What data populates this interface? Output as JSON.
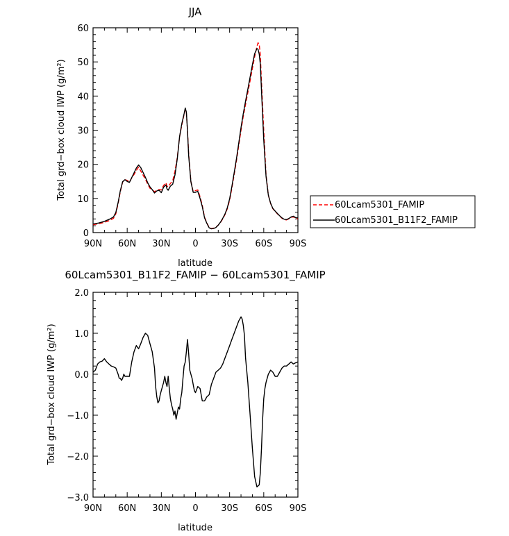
{
  "chart_data": [
    {
      "type": "line",
      "title": "JJA",
      "xlabel": "latitude",
      "ylabel": "Total grd−box cloud IWP (g/m²)",
      "xlim": [
        90,
        -90
      ],
      "ylim": [
        0,
        60
      ],
      "x_ticks": [
        90,
        60,
        30,
        0,
        -30,
        -60,
        -90
      ],
      "x_tick_labels": [
        "90N",
        "60N",
        "30N",
        "0",
        "30S",
        "60S",
        "90S"
      ],
      "y_ticks": [
        0,
        10,
        20,
        30,
        40,
        50,
        60
      ],
      "y_tick_labels": [
        "0",
        "10",
        "20",
        "30",
        "40",
        "50",
        "60"
      ],
      "legend_position": "right",
      "series": [
        {
          "name": "60Lcam5301_FAMIP",
          "color": "#ff0000",
          "dash": true,
          "x": [
            90,
            85,
            80,
            75,
            72,
            70,
            68,
            66,
            64,
            62,
            60,
            58,
            56,
            54,
            52,
            50,
            48,
            46,
            44,
            42,
            40,
            38,
            36,
            34,
            32,
            30,
            28,
            26,
            25,
            24,
            22,
            20,
            18,
            16,
            14,
            12,
            10,
            9,
            8,
            7,
            6,
            4,
            2,
            0,
            -2,
            -4,
            -6,
            -8,
            -10,
            -12,
            -14,
            -16,
            -18,
            -20,
            -22,
            -24,
            -26,
            -28,
            -30,
            -32,
            -34,
            -36,
            -38,
            -40,
            -42,
            -44,
            -46,
            -48,
            -50,
            -52,
            -54,
            -55,
            -56,
            -57,
            -58,
            -60,
            -62,
            -64,
            -66,
            -68,
            -70,
            -72,
            -74,
            -76,
            -78,
            -80,
            -82,
            -84,
            -86,
            -88,
            -90
          ],
          "y": [
            2.3,
            2.6,
            3.0,
            3.6,
            4.2,
            5.5,
            8.5,
            12.0,
            14.8,
            15.5,
            15.3,
            14.8,
            16.0,
            17.0,
            18.2,
            19.2,
            18.0,
            16.8,
            15.6,
            14.2,
            13.0,
            12.5,
            12.0,
            12.4,
            12.6,
            12.5,
            13.8,
            14.6,
            13.6,
            13.4,
            14.4,
            15.2,
            18.0,
            22.0,
            28.0,
            31.5,
            34.6,
            36.0,
            35.0,
            30.0,
            23.0,
            15.0,
            12.0,
            12.3,
            12.5,
            10.5,
            8.0,
            4.5,
            2.8,
            1.5,
            1.2,
            1.3,
            1.6,
            2.2,
            3.0,
            4.0,
            5.3,
            7.0,
            9.5,
            13.0,
            17.0,
            21.0,
            25.5,
            30.0,
            34.0,
            37.5,
            41.0,
            44.5,
            48.0,
            51.5,
            54.5,
            55.6,
            55.2,
            52.0,
            44.0,
            30.0,
            17.0,
            11.0,
            8.5,
            7.0,
            6.2,
            5.5,
            4.8,
            4.2,
            3.8,
            3.7,
            4.0,
            4.5,
            4.6,
            4.2,
            4.0
          ]
        },
        {
          "name": "60Lcam5301_B11F2_FAMIP",
          "color": "#000000",
          "dash": false,
          "x": [
            90,
            85,
            80,
            75,
            72,
            70,
            68,
            66,
            64,
            62,
            60,
            58,
            56,
            54,
            52,
            50,
            48,
            46,
            44,
            42,
            40,
            38,
            36,
            34,
            32,
            30,
            28,
            26,
            25,
            24,
            22,
            20,
            18,
            16,
            14,
            12,
            10,
            9,
            8,
            7,
            6,
            4,
            2,
            0,
            -2,
            -4,
            -6,
            -8,
            -10,
            -12,
            -14,
            -16,
            -18,
            -20,
            -22,
            -24,
            -26,
            -28,
            -30,
            -32,
            -34,
            -36,
            -38,
            -40,
            -42,
            -44,
            -46,
            -48,
            -50,
            -52,
            -54,
            -55,
            -56,
            -57,
            -58,
            -60,
            -62,
            -64,
            -66,
            -68,
            -70,
            -72,
            -74,
            -76,
            -78,
            -80,
            -82,
            -84,
            -86,
            -88,
            -90
          ],
          "y": [
            2.5,
            2.8,
            3.3,
            4.0,
            4.6,
            5.9,
            8.8,
            12.3,
            14.9,
            15.5,
            15.0,
            14.7,
            16.1,
            17.5,
            18.9,
            19.8,
            19.0,
            17.6,
            16.2,
            14.6,
            13.4,
            12.6,
            11.6,
            12.2,
            12.4,
            11.7,
            13.3,
            14.0,
            12.8,
            12.4,
            13.6,
            14.2,
            16.9,
            21.6,
            28.1,
            31.9,
            34.8,
            36.5,
            35.3,
            29.8,
            22.5,
            14.9,
            11.8,
            11.8,
            12.1,
            10.0,
            7.6,
            4.3,
            2.7,
            1.4,
            1.1,
            1.2,
            1.5,
            2.2,
            3.1,
            4.2,
            5.5,
            7.3,
            9.9,
            13.5,
            17.5,
            21.6,
            26.2,
            30.8,
            34.8,
            38.5,
            42.0,
            45.6,
            49.1,
            52.4,
            53.9,
            53.7,
            52.3,
            49.3,
            41.4,
            27.2,
            16.5,
            11.0,
            8.6,
            7.1,
            6.3,
            5.6,
            4.9,
            4.3,
            3.9,
            3.8,
            4.1,
            4.6,
            4.8,
            4.4,
            4.3
          ]
        }
      ]
    },
    {
      "type": "line",
      "title": "60Lcam5301_B11F2_FAMIP − 60Lcam5301_FAMIP",
      "xlabel": "latitude",
      "ylabel": "Total grd−box cloud IWP (g/m²)",
      "xlim": [
        90,
        -90
      ],
      "ylim": [
        -3.0,
        2.0
      ],
      "x_ticks": [
        90,
        60,
        30,
        0,
        -30,
        -60,
        -90
      ],
      "x_tick_labels": [
        "90N",
        "60N",
        "30N",
        "0",
        "30S",
        "60S",
        "90S"
      ],
      "y_ticks": [
        -3,
        -2,
        -1,
        0,
        1,
        2
      ],
      "y_tick_labels": [
        "−3.0",
        "−2.0",
        "−1.0",
        "0.0",
        "1.0",
        "2.0"
      ],
      "series": [
        {
          "color": "#000000",
          "x": [
            90,
            88,
            86,
            84,
            82,
            80,
            78,
            76,
            74,
            72,
            70,
            68,
            67,
            66,
            65,
            64,
            63,
            62,
            60,
            58,
            56,
            54,
            52,
            50,
            48,
            46,
            44,
            42,
            40,
            38,
            36,
            35,
            34,
            33,
            32,
            31,
            30,
            28,
            27,
            26,
            25,
            24,
            23,
            22,
            21,
            20,
            19,
            18,
            17,
            16,
            15,
            14,
            13,
            12,
            11,
            10,
            9,
            8,
            7,
            6,
            5,
            4,
            3,
            2,
            1,
            0,
            -2,
            -4,
            -6,
            -8,
            -10,
            -12,
            -14,
            -16,
            -18,
            -20,
            -22,
            -24,
            -26,
            -28,
            -30,
            -32,
            -34,
            -36,
            -38,
            -40,
            -41,
            -42,
            -43,
            -44,
            -46,
            -48,
            -50,
            -52,
            -54,
            -56,
            -57,
            -58,
            -59,
            -60,
            -61,
            -62,
            -64,
            -66,
            -68,
            -70,
            -72,
            -74,
            -76,
            -78,
            -80,
            -82,
            -84,
            -86,
            -88,
            -90
          ],
          "y": [
            0.05,
            0.1,
            0.25,
            0.3,
            0.32,
            0.38,
            0.3,
            0.25,
            0.2,
            0.18,
            0.15,
            0.0,
            -0.1,
            -0.1,
            -0.15,
            -0.1,
            0.0,
            -0.05,
            -0.05,
            -0.05,
            0.3,
            0.55,
            0.7,
            0.62,
            0.75,
            0.9,
            1.0,
            0.95,
            0.75,
            0.55,
            0.15,
            -0.3,
            -0.55,
            -0.7,
            -0.65,
            -0.5,
            -0.4,
            -0.2,
            -0.05,
            -0.2,
            -0.3,
            -0.05,
            -0.35,
            -0.6,
            -0.75,
            -0.85,
            -1.0,
            -0.9,
            -1.1,
            -0.95,
            -0.8,
            -0.85,
            -0.6,
            -0.45,
            -0.1,
            0.2,
            0.3,
            0.55,
            0.85,
            0.5,
            0.1,
            0.0,
            -0.1,
            -0.25,
            -0.4,
            -0.45,
            -0.3,
            -0.35,
            -0.65,
            -0.65,
            -0.55,
            -0.5,
            -0.25,
            -0.1,
            0.05,
            0.1,
            0.15,
            0.25,
            0.4,
            0.55,
            0.7,
            0.85,
            1.0,
            1.15,
            1.3,
            1.4,
            1.35,
            1.2,
            0.95,
            0.4,
            -0.2,
            -1.0,
            -1.8,
            -2.5,
            -2.75,
            -2.7,
            -2.4,
            -1.8,
            -1.1,
            -0.6,
            -0.35,
            -0.2,
            0.0,
            0.1,
            0.05,
            -0.05,
            -0.05,
            0.05,
            0.15,
            0.2,
            0.2,
            0.25,
            0.3,
            0.25,
            0.28,
            0.3
          ]
        }
      ]
    }
  ]
}
